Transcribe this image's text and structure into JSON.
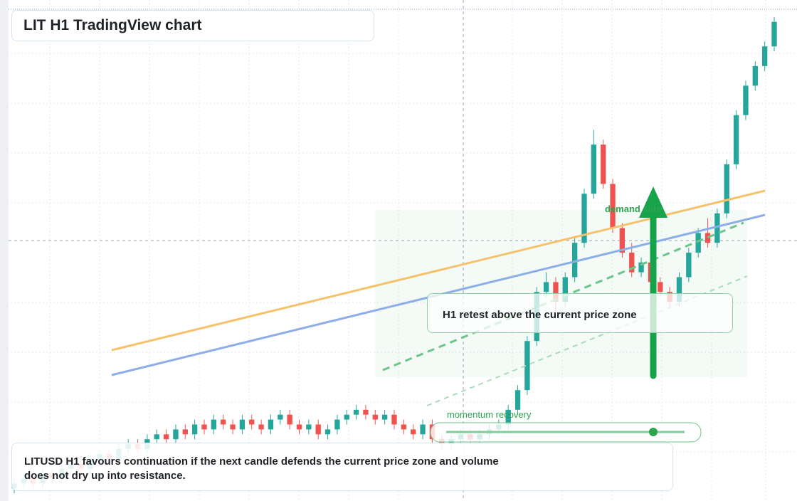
{
  "header": {
    "title": "LIT H1 TradingView chart"
  },
  "annotations": {
    "demand": "demand side",
    "retest": "H1 retest above the current price zone",
    "momentum": "momentum recovery"
  },
  "footer": {
    "text": "LITUSD H1 favours continuation if the next candle defends the current price zone and volume does not dry up into resistance."
  },
  "chart": {
    "type": "candlestick",
    "ylim": [
      0,
      100
    ],
    "up_color": "#26a69a",
    "down_color": "#ef5350",
    "candles": [
      [
        2,
        4,
        1,
        3
      ],
      [
        3,
        5,
        2,
        4
      ],
      [
        4,
        5,
        2,
        3
      ],
      [
        3,
        6,
        2,
        5
      ],
      [
        5,
        6,
        3,
        4
      ],
      [
        4,
        7,
        3,
        6
      ],
      [
        6,
        8,
        5,
        7
      ],
      [
        7,
        8,
        5,
        6
      ],
      [
        6,
        9,
        5,
        8
      ],
      [
        8,
        10,
        7,
        9
      ],
      [
        9,
        10,
        7,
        8
      ],
      [
        8,
        11,
        7,
        10
      ],
      [
        10,
        12,
        9,
        11
      ],
      [
        11,
        12,
        9,
        10
      ],
      [
        10,
        13,
        9,
        12
      ],
      [
        12,
        14,
        11,
        13
      ],
      [
        13,
        14,
        11,
        12
      ],
      [
        12,
        15,
        11,
        14
      ],
      [
        14,
        15,
        12,
        13
      ],
      [
        13,
        16,
        12,
        15
      ],
      [
        15,
        16,
        13,
        14
      ],
      [
        14,
        17,
        13,
        16
      ],
      [
        16,
        17,
        14,
        15
      ],
      [
        15,
        16,
        13,
        14
      ],
      [
        14,
        17,
        13,
        16
      ],
      [
        16,
        17,
        14,
        15
      ],
      [
        15,
        16,
        13,
        14
      ],
      [
        14,
        17,
        13,
        16
      ],
      [
        16,
        18,
        15,
        17
      ],
      [
        17,
        18,
        14,
        15
      ],
      [
        15,
        16,
        13,
        14
      ],
      [
        14,
        16,
        13,
        15
      ],
      [
        15,
        16,
        12,
        13
      ],
      [
        13,
        15,
        12,
        14
      ],
      [
        14,
        17,
        13,
        16
      ],
      [
        16,
        18,
        15,
        17
      ],
      [
        17,
        19,
        16,
        18
      ],
      [
        18,
        19,
        16,
        17
      ],
      [
        17,
        18,
        15,
        16
      ],
      [
        16,
        18,
        15,
        17
      ],
      [
        17,
        18,
        14,
        15
      ],
      [
        15,
        16,
        13,
        14
      ],
      [
        14,
        15,
        12,
        13
      ],
      [
        13,
        16,
        12,
        15
      ],
      [
        15,
        16,
        11,
        12
      ],
      [
        12,
        13,
        10,
        11
      ],
      [
        11,
        13,
        10,
        12
      ],
      [
        12,
        14,
        11,
        13
      ],
      [
        13,
        14,
        11,
        12
      ],
      [
        12,
        14,
        11,
        13
      ],
      [
        13,
        15,
        12,
        14
      ],
      [
        14,
        16,
        13,
        15
      ],
      [
        15,
        19,
        14,
        18
      ],
      [
        18,
        23,
        17,
        22
      ],
      [
        22,
        33,
        21,
        32
      ],
      [
        32,
        43,
        31,
        42
      ],
      [
        42,
        46,
        41,
        44
      ],
      [
        44,
        45,
        38,
        40
      ],
      [
        40,
        46,
        39,
        45
      ],
      [
        45,
        53,
        44,
        52
      ],
      [
        52,
        63,
        51,
        62
      ],
      [
        62,
        75,
        61,
        72
      ],
      [
        72,
        73,
        63,
        64
      ],
      [
        64,
        65,
        54,
        55
      ],
      [
        55,
        56,
        49,
        50
      ],
      [
        50,
        52,
        45,
        46
      ],
      [
        46,
        49,
        45,
        48
      ],
      [
        48,
        49,
        43,
        44
      ],
      [
        44,
        45,
        41,
        42
      ],
      [
        42,
        43,
        39,
        40
      ],
      [
        40,
        46,
        39,
        45
      ],
      [
        45,
        51,
        44,
        50
      ],
      [
        50,
        55,
        49,
        54
      ],
      [
        54,
        57,
        51,
        52
      ],
      [
        52,
        59,
        51,
        58
      ],
      [
        58,
        69,
        57,
        68
      ],
      [
        68,
        79,
        67,
        78
      ],
      [
        78,
        85,
        77,
        84
      ],
      [
        84,
        89,
        83,
        88
      ],
      [
        88,
        93,
        87,
        92
      ],
      [
        92,
        98,
        91,
        97
      ]
    ]
  }
}
